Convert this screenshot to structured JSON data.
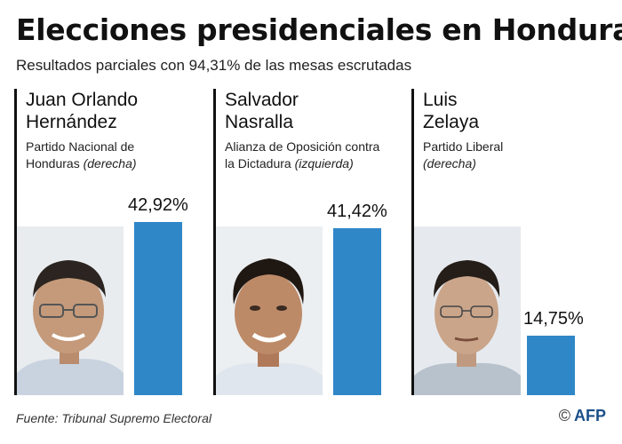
{
  "title": "Elecciones presidenciales en Honduras",
  "subtitle": "Resultados parciales con 94,31% de las mesas escrutadas",
  "source": "Fuente: Tribunal Supremo Electoral",
  "credit": {
    "copyright": "©",
    "logo": "AFP"
  },
  "colors": {
    "bar": "#2f87c8",
    "rule": "#111111"
  },
  "candidates": [
    {
      "name_line1": "Juan Orlando",
      "name_line2": "Hernández",
      "party_line1": "Partido Nacional de",
      "party_line2": "Honduras",
      "orientation": "(derecha)",
      "percent_label": "42,92%"
    },
    {
      "name_line1": "Salvador",
      "name_line2": "Nasralla",
      "party_line1": "Alianza de Oposición contra",
      "party_line2": "la Dictadura",
      "orientation": "(izquierda)",
      "percent_label": "41,42%"
    },
    {
      "name_line1": "Luis",
      "name_line2": "Zelaya",
      "party_line1": "Partido Liberal",
      "party_line2": "",
      "orientation": "(derecha)",
      "percent_label": "14,75%"
    }
  ],
  "chart_data": {
    "type": "bar",
    "categories": [
      "Juan Orlando Hernández",
      "Salvador Nasralla",
      "Luis Zelaya"
    ],
    "values": [
      42.92,
      41.42,
      14.75
    ],
    "title": "Elecciones presidenciales en Honduras",
    "subtitle": "Resultados parciales con 94,31% de las mesas escrutadas",
    "xlabel": "",
    "ylabel": "",
    "ylim": [
      0,
      42.92
    ],
    "grid": false,
    "legend": "none"
  }
}
